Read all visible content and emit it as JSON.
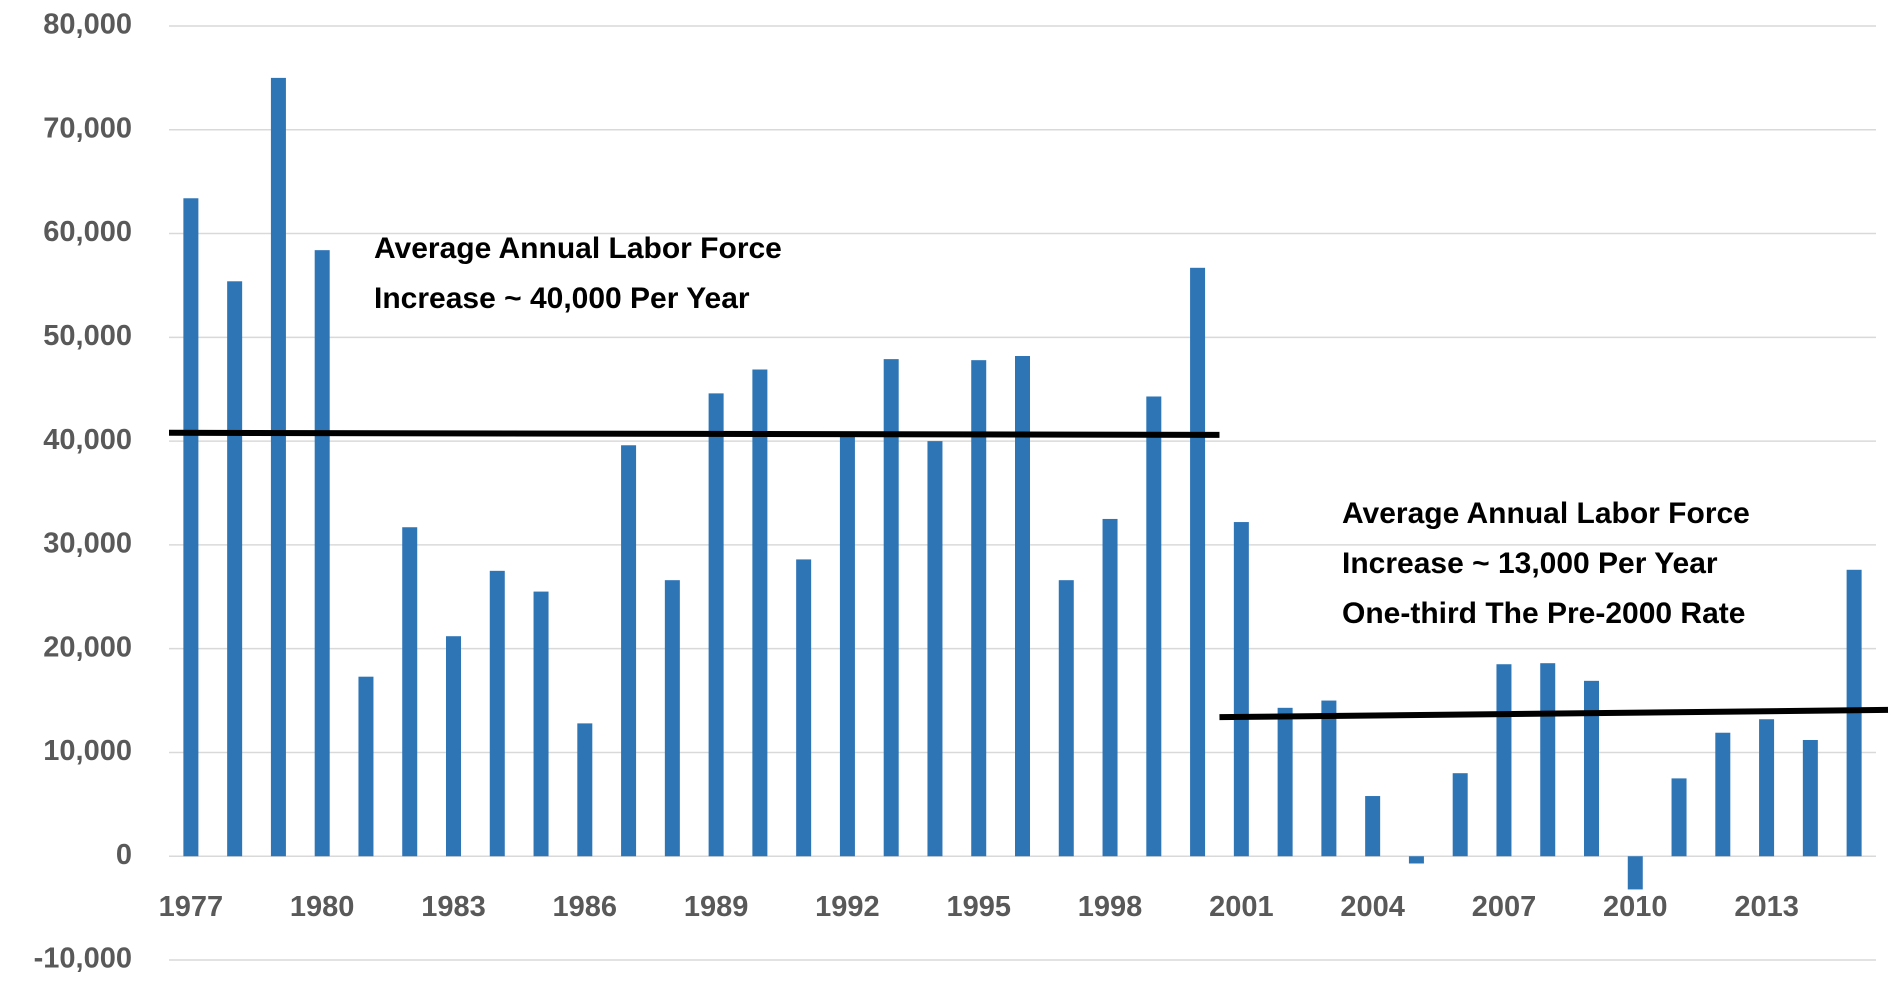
{
  "chart_data": {
    "type": "bar",
    "color": "#2e75b6",
    "categories": [
      "1977",
      null,
      null,
      "1980",
      null,
      null,
      "1983",
      null,
      null,
      "1986",
      null,
      null,
      "1989",
      null,
      null,
      "1992",
      null,
      null,
      "1995",
      null,
      null,
      "1998",
      null,
      null,
      "2001",
      null,
      null,
      "2004",
      null,
      null,
      "2007",
      null,
      null,
      "2010",
      null,
      null,
      "2013",
      null,
      null
    ],
    "values": [
      63400,
      55400,
      75000,
      58400,
      17300,
      31700,
      21200,
      27500,
      25500,
      12800,
      39600,
      26600,
      44600,
      46900,
      28600,
      40500,
      47900,
      40000,
      47800,
      48200,
      26600,
      32500,
      44300,
      56700,
      32200,
      14300,
      15000,
      5800,
      -700,
      8000,
      18500,
      18600,
      16900,
      -3200,
      7500,
      11900,
      13200,
      11200,
      27600
    ],
    "ylim": [
      -10000,
      80000
    ],
    "yticks": [
      {
        "value": -10000,
        "label": "-10,000"
      },
      0,
      {
        "value": 10000,
        "label": "10,000"
      },
      {
        "value": 20000,
        "label": "20,000"
      },
      {
        "value": 30000,
        "label": "30,000"
      },
      {
        "value": 40000,
        "label": "40,000"
      },
      {
        "value": 50000,
        "label": "50,000"
      },
      {
        "value": 60000,
        "label": "60,000"
      },
      {
        "value": 70000,
        "label": "70,000"
      },
      {
        "value": 80000,
        "label": "80,000"
      }
    ],
    "grid": true,
    "trend_lines": [
      {
        "color": "#000000",
        "values": [
          40800,
          40600
        ]
      },
      {
        "color": "#000000",
        "values": [
          13400,
          14100
        ]
      }
    ],
    "annotations": [
      [
        "Average Annual Labor Force",
        "Increase ~ 40,000 Per Year"
      ],
      [
        "Average Annual Labor Force",
        "Increase ~ 13,000 Per Year",
        "One-third The Pre-2000 Rate"
      ]
    ]
  }
}
